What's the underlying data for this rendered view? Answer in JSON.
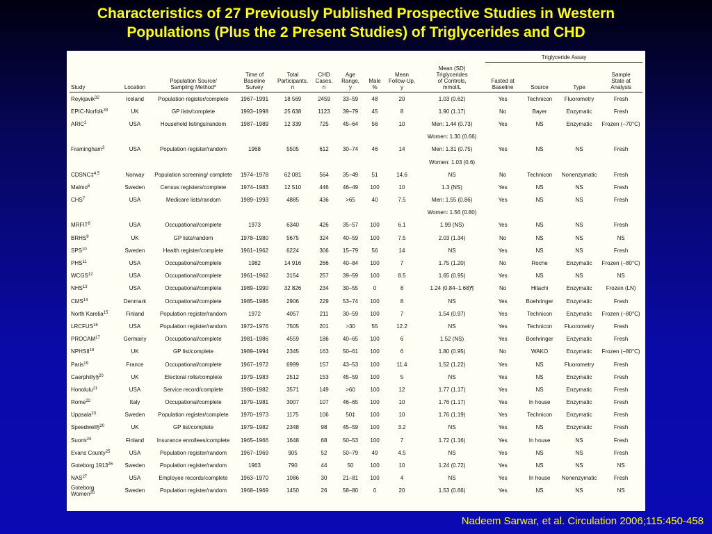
{
  "title": {
    "line1": "Characteristics of 27 Previously Published Prospective Studies in Western",
    "line2": "Populations (Plus the 2 Present Studies) of Triglycerides and CHD"
  },
  "table": {
    "group_header": "Triglyceride Assay",
    "headers": [
      "Study",
      "Location",
      "Population Source/\nSampling Method*",
      "Time of\nBaseline\nSurvey",
      "Total\nParticipants,\nn",
      "CHD\nCases,\nn",
      "Age\nRange,\ny",
      "Male\n%",
      "Mean\nFollow-Up,\ny",
      "Mean (SD)\nTriglycerides\nof Controls,\nmmol/L",
      "Fasted at\nBaseline",
      "Source",
      "Type",
      "Sample\nState at\nAnalysis"
    ],
    "rows": [
      {
        "study": "Reykjavik",
        "ref": "32",
        "cells": [
          "Iceland",
          "Population register/complete",
          "1967–1991",
          "18 569",
          "2459",
          "33–59",
          "48",
          "20",
          "1.03 (0.62)",
          "Yes",
          "Technicon",
          "Fluorometry",
          "Fresh"
        ]
      },
      {
        "study": "EPIC-Norfolk",
        "ref": "33",
        "cells": [
          "UK",
          "GP lists/complete",
          "1993–1998",
          "25 638",
          "1123",
          "39–79",
          "45",
          "8",
          "1.90 (1.17)",
          "No",
          "Bayer",
          "Enzymatic",
          "Fresh"
        ]
      },
      {
        "study": "ARIC",
        "ref": "2",
        "cells": [
          "USA",
          "Household listings/random",
          "1987–1989",
          "12 339",
          "725",
          "45–64",
          "56",
          "10",
          "Men: 1.44 (0.73)",
          "Yes",
          "NS",
          "Enzymatic",
          "Frozen (−70°C)"
        ]
      },
      {
        "study": "",
        "ref": "",
        "cells": [
          "",
          "",
          "",
          "",
          "",
          "",
          "",
          "",
          "Women: 1.30 (0.66)",
          "",
          "",
          "",
          ""
        ]
      },
      {
        "study": "Framingham",
        "ref": "3",
        "cells": [
          "USA",
          "Population register/random",
          "1968",
          "5505",
          "612",
          "30–74",
          "46",
          "14",
          "Men: 1.31 (0.75)",
          "Yes",
          "NS",
          "NS",
          "Fresh"
        ]
      },
      {
        "study": "",
        "ref": "",
        "cells": [
          "",
          "",
          "",
          "",
          "",
          "",
          "",
          "",
          "Women: 1.03 (0.6)",
          "",
          "",
          "",
          ""
        ]
      },
      {
        "study": "CDSNC‡",
        "ref": "4,5",
        "cells": [
          "Norway",
          "Population screening/ complete",
          "1974–1978",
          "62 081",
          "564",
          "35–49",
          "51",
          "14.6",
          "NS",
          "No",
          "Technicon",
          "Nonenzymatic",
          "Fresh"
        ]
      },
      {
        "study": "Malmo",
        "ref": "6",
        "cells": [
          "Sweden",
          "Census registers/complete",
          "1974–1983",
          "12 510",
          "446",
          "46–49",
          "100",
          "10",
          "1.3 (NS)",
          "Yes",
          "NS",
          "NS",
          "Fresh"
        ]
      },
      {
        "study": "CHS",
        "ref": "7",
        "cells": [
          "USA",
          "Medicare lists/random",
          "1989–1993",
          "4885",
          "436",
          ">65",
          "40",
          "7.5",
          "Men: 1.55 (0.86)",
          "Yes",
          "NS",
          "NS",
          "Fresh"
        ]
      },
      {
        "study": "",
        "ref": "",
        "cells": [
          "",
          "",
          "",
          "",
          "",
          "",
          "",
          "",
          "Women: 1.56 (0.80)",
          "",
          "",
          "",
          ""
        ]
      },
      {
        "study": "MRFIT",
        "ref": "8",
        "cells": [
          "USA",
          "Occupational/complete",
          "1973",
          "6340",
          "426",
          "35–57",
          "100",
          "6.1",
          "1.99 (NS)",
          "Yes",
          "NS",
          "NS",
          "Fresh"
        ]
      },
      {
        "study": "BRHS",
        "ref": "9",
        "cells": [
          "UK",
          "GP lists/random",
          "1978–1980",
          "5675",
          "324",
          "40–59",
          "100",
          "7.5",
          "2.03 (1.34)",
          "No",
          "NS",
          "NS",
          "NS"
        ]
      },
      {
        "study": "SPS",
        "ref": "10",
        "cells": [
          "Sweden",
          "Health register/complete",
          "1961–1962",
          "6224",
          "306",
          "15–79",
          "56",
          "14",
          "NS",
          "Yes",
          "NS",
          "NS",
          "Fresh"
        ]
      },
      {
        "study": "PHS",
        "ref": "11",
        "cells": [
          "USA",
          "Occupational/complete",
          "1982",
          "14 916",
          "266",
          "40–84",
          "100",
          "7",
          "1.75 (1.20)",
          "No",
          "Roche",
          "Enzymatic",
          "Frozen (−80°C)"
        ]
      },
      {
        "study": "WCGS",
        "ref": "12",
        "cells": [
          "USA",
          "Occupational/complete",
          "1961–1962",
          "3154",
          "257",
          "39–59",
          "100",
          "8.5",
          "1.65 (0.95)",
          "Yes",
          "NS",
          "NS",
          "NS"
        ]
      },
      {
        "study": "NHS",
        "ref": "13",
        "cells": [
          "USA",
          "Occupational/complete",
          "1989–1990",
          "32 826",
          "234",
          "30–55",
          "0",
          "8",
          "1.24 (0.84–1.68)¶",
          "No",
          "Hitachi",
          "Enzymatic",
          "Frozen (LN)"
        ]
      },
      {
        "study": "CMS",
        "ref": "14",
        "cells": [
          "Denmark",
          "Occupational/complete",
          "1985–1986",
          "2906",
          "229",
          "53–74",
          "100",
          "8",
          "NS",
          "Yes",
          "Boehringer",
          "Enzymatic",
          "Fresh"
        ]
      },
      {
        "study": "North Karelia",
        "ref": "15",
        "cells": [
          "Finland",
          "Population register/random",
          "1972",
          "4057",
          "211",
          "30–59",
          "100",
          "7",
          "1.54 (0.97)",
          "Yes",
          "Technicon",
          "Enzymatic",
          "Frozen (−80°C)"
        ]
      },
      {
        "study": "LRCFUS",
        "ref": "16",
        "cells": [
          "USA",
          "Population register/random",
          "1972–1976",
          "7505",
          "201",
          ">30",
          "55",
          "12.2",
          "NS",
          "Yes",
          "Technicon",
          "Fluorometry",
          "Fresh"
        ]
      },
      {
        "study": "PROCAM",
        "ref": "17",
        "cells": [
          "Germany",
          "Occupational/complete",
          "1981–1986",
          "4559",
          "186",
          "40–65",
          "100",
          "6",
          "1.52 (NS)",
          "Yes",
          "Boehringer",
          "Enzymatic",
          "Fresh"
        ]
      },
      {
        "study": "NPHSII",
        "ref": "18",
        "cells": [
          "UK",
          "GP list/complete",
          "1989–1994",
          "2345",
          "163",
          "50–61",
          "100",
          "6",
          "1.80 (0.95)",
          "No",
          "WAKO",
          "Enzymatic",
          "Frozen (−80°C)"
        ]
      },
      {
        "study": "Paris",
        "ref": "19",
        "cells": [
          "France",
          "Occupational/complete",
          "1967–1972",
          "6999",
          "157",
          "43–53",
          "100",
          "11.4",
          "1.52 (1.22)",
          "Yes",
          "NS",
          "Fluorometry",
          "Fresh"
        ]
      },
      {
        "study": "Caerphilly§",
        "ref": "20",
        "cells": [
          "UK",
          "Electoral rolls/complete",
          "1979–1983",
          "2512",
          "153",
          "45–59",
          "100",
          "5",
          "NS",
          "Yes",
          "NS",
          "Enzymatic",
          "Fresh"
        ]
      },
      {
        "study": "Honolulu",
        "ref": "21",
        "cells": [
          "USA",
          "Service record/complete",
          "1980–1982",
          "3571",
          "149",
          ">60",
          "100",
          "12",
          "1.77 (1.17)",
          "Yes",
          "NS",
          "Enzymatic",
          "Fresh"
        ]
      },
      {
        "study": "Rome",
        "ref": "22",
        "cells": [
          "Italy",
          "Occupational/complete",
          "1979–1981",
          "3007",
          "107",
          "46–65",
          "100",
          "10",
          "1.76 (1.17)",
          "Yes",
          "In house",
          "Enzymatic",
          "Fresh"
        ]
      },
      {
        "study": "Uppsala",
        "ref": "23",
        "cells": [
          "Sweden",
          "Population register/complete",
          "1970–1973",
          "1175",
          "106",
          "50‡",
          "100",
          "10",
          "1.76 (1.19)",
          "Yes",
          "Technicon",
          "Enzymatic",
          "Fresh"
        ]
      },
      {
        "study": "Speedwell§",
        "ref": "20",
        "cells": [
          "UK",
          "GP list/complete",
          "1979–1982",
          "2348",
          "98",
          "45–59",
          "100",
          "3.2",
          "NS",
          "Yes",
          "NS",
          "Enzymatic",
          "Fresh"
        ]
      },
      {
        "study": "Suomi",
        "ref": "24",
        "cells": [
          "Finland",
          "Insurance enrollees/complete",
          "1965–1966",
          "1648",
          "68",
          "50–53",
          "100",
          "7",
          "1.72 (1.16)",
          "Yes",
          "In house",
          "NS",
          "Fresh"
        ]
      },
      {
        "study": "Evans County",
        "ref": "25",
        "cells": [
          "USA",
          "Population register/random",
          "1967–1969",
          "905",
          "52",
          "50–79",
          "49",
          "4.5",
          "NS",
          "Yes",
          "NS",
          "NS",
          "Fresh"
        ]
      },
      {
        "study": "Goteborg 1913",
        "ref": "26",
        "cells": [
          "Sweden",
          "Population register/random",
          "1963",
          "790",
          "44",
          "50",
          "100",
          "10",
          "1.24 (0.72)",
          "Yes",
          "NS",
          "NS",
          "NS"
        ]
      },
      {
        "study": "NAS",
        "ref": "27",
        "cells": [
          "USA",
          "Employee records/complete",
          "1963–1970",
          "1086",
          "30",
          "21–81",
          "100",
          "4",
          "NS",
          "Yes",
          "In house",
          "Nonenzymatic",
          "Fresh"
        ]
      },
      {
        "study": "Goteborg\nWomen",
        "ref": "28",
        "cells": [
          "Sweden",
          "Population register/random",
          "1968–1969",
          "1450",
          "26",
          "58–80",
          "0",
          "20",
          "1.53 (0.66)",
          "Yes",
          "NS",
          "NS",
          "NS"
        ]
      }
    ]
  },
  "citation": "Nadeem Sarwar, et al. Circulation 2006;115:450-458"
}
